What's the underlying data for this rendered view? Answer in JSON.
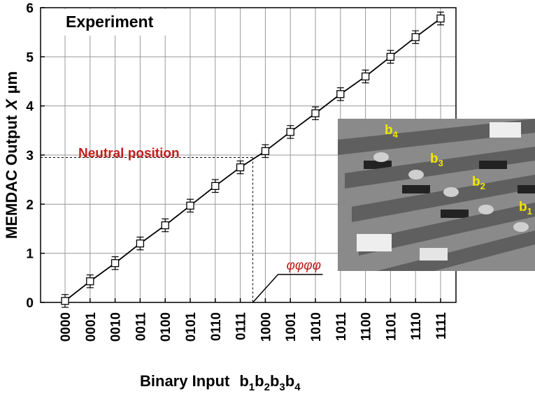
{
  "chart_data": {
    "type": "line",
    "legend_text": "Experiment",
    "x_label": "Binary Input",
    "x_label_vars": [
      {
        "base": "b",
        "sub": "1"
      },
      {
        "base": "b",
        "sub": "2"
      },
      {
        "base": "b",
        "sub": "3"
      },
      {
        "base": "b",
        "sub": "4"
      }
    ],
    "y_label": [
      "MEMDAC Output",
      "X",
      "µm"
    ],
    "categories": [
      "0000",
      "0001",
      "0010",
      "0011",
      "0100",
      "0101",
      "0110",
      "0111",
      "1000",
      "1001",
      "1010",
      "1011",
      "1100",
      "1101",
      "1110",
      "1111"
    ],
    "series": [
      {
        "name": "Experiment",
        "color": "#000000",
        "values": [
          0.03,
          0.43,
          0.8,
          1.2,
          1.57,
          1.97,
          2.37,
          2.75,
          3.08,
          3.47,
          3.85,
          4.24,
          4.6,
          5.0,
          5.4,
          5.78
        ],
        "errors": [
          0.13,
          0.13,
          0.13,
          0.13,
          0.13,
          0.13,
          0.13,
          0.13,
          0.13,
          0.13,
          0.13,
          0.13,
          0.13,
          0.13,
          0.13,
          0.13
        ]
      }
    ],
    "ylim": [
      0,
      6
    ],
    "yticks": [
      0,
      1,
      2,
      3,
      4,
      5,
      6
    ],
    "grid": true,
    "neutral": {
      "label": "Neutral position",
      "value": 2.95
    },
    "phase_label": "φφφφ",
    "inset_labels": [
      {
        "base": "b",
        "sub": "4"
      },
      {
        "base": "b",
        "sub": "3"
      },
      {
        "base": "b",
        "sub": "2"
      },
      {
        "base": "b",
        "sub": "1"
      }
    ]
  }
}
